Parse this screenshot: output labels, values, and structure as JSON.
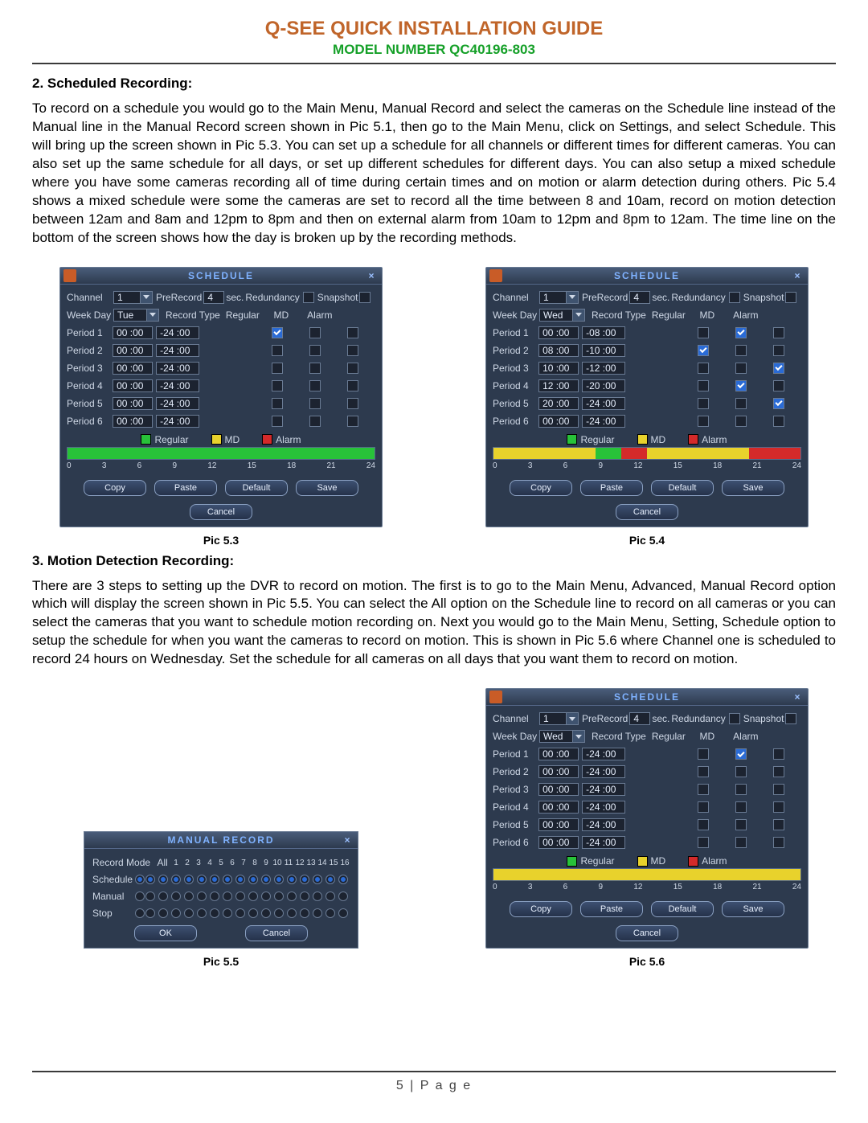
{
  "header": {
    "title": "Q-SEE QUICK INSTALLATION GUIDE",
    "model": "MODEL NUMBER QC40196-803"
  },
  "section2": {
    "heading": "2. Scheduled Recording:",
    "text": "To record on a schedule you would go to the Main Menu, Manual Record and select the cameras on the Schedule line instead of the Manual line in the Manual Record screen shown in Pic 5.1, then go to the Main Menu, click on Settings, and select Schedule. This will bring up the screen shown in Pic 5.3. You can set up a schedule for all channels or different times for different cameras. You can also set up the same schedule for all days, or set up different schedules for different days. You can also setup a mixed schedule where you have some cameras recording all of time during certain times and on motion or alarm detection during others. Pic 5.4 shows a mixed schedule were some the cameras are set to record all the time between 8 and 10am, record on motion detection between 12am and 8am and 12pm to 8pm and then on external alarm from 10am to 12pm and 8pm to 12am. The time line on the bottom of the screen shows how the day is broken up by the recording methods."
  },
  "section3": {
    "heading": "3. Motion Detection Recording:",
    "text": "There are 3 steps to setting up the DVR to record on motion. The first is to go to the Main Menu, Advanced, Manual Record option which will display the screen shown in Pic 5.5. You can select the All option on the Schedule line to record on all cameras or you can select the cameras that you want to schedule motion recording on. Next you would go to the Main Menu, Setting, Schedule option to setup the schedule for when you want the cameras to record on motion. This is shown in Pic 5.6 where Channel one is scheduled to record 24 hours on Wednesday. Set the schedule for all cameras on all days that you want them to record on motion."
  },
  "captions": {
    "p53": "Pic 5.3",
    "p54": "Pic 5.4",
    "p55": "Pic 5.5",
    "p56": "Pic 5.6"
  },
  "footer": "5 | P a g e",
  "schedule_common": {
    "title": "SCHEDULE",
    "labels": {
      "channel": "Channel",
      "prerecord": "PreRecord",
      "sec": "sec.",
      "redundancy": "Redundancy",
      "snapshot": "Snapshot",
      "weekday": "Week Day",
      "recordtype": "Record Type",
      "regular": "Regular",
      "md": "MD",
      "alarm": "Alarm"
    },
    "period_labels": [
      "Period 1",
      "Period 2",
      "Period 3",
      "Period 4",
      "Period 5",
      "Period 6"
    ],
    "prerecord_val": "4",
    "legend": {
      "regular": "Regular",
      "md": "MD",
      "alarm": "Alarm"
    },
    "legend_colors": {
      "regular": "#28c239",
      "md": "#e8d22c",
      "alarm": "#d42a2a"
    },
    "ticks": [
      "0",
      "3",
      "6",
      "9",
      "12",
      "15",
      "18",
      "21",
      "24"
    ],
    "buttons": [
      "Copy",
      "Paste",
      "Default",
      "Save",
      "Cancel"
    ]
  },
  "pic53": {
    "channel": "1",
    "weekday": "Tue",
    "periods": [
      {
        "t1": "00 :00",
        "t2": "-24 :00",
        "reg": true,
        "md": false,
        "alm": false
      },
      {
        "t1": "00 :00",
        "t2": "-24 :00",
        "reg": false,
        "md": false,
        "alm": false
      },
      {
        "t1": "00 :00",
        "t2": "-24 :00",
        "reg": false,
        "md": false,
        "alm": false
      },
      {
        "t1": "00 :00",
        "t2": "-24 :00",
        "reg": false,
        "md": false,
        "alm": false
      },
      {
        "t1": "00 :00",
        "t2": "-24 :00",
        "reg": false,
        "md": false,
        "alm": false
      },
      {
        "t1": "00 :00",
        "t2": "-24 :00",
        "reg": false,
        "md": false,
        "alm": false
      }
    ],
    "timeline": [
      {
        "from": 0,
        "to": 24,
        "color": "#28c239"
      }
    ]
  },
  "pic54": {
    "channel": "1",
    "weekday": "Wed",
    "periods": [
      {
        "t1": "00 :00",
        "t2": "-08 :00",
        "reg": false,
        "md": true,
        "alm": false
      },
      {
        "t1": "08 :00",
        "t2": "-10 :00",
        "reg": true,
        "md": false,
        "alm": false
      },
      {
        "t1": "10 :00",
        "t2": "-12 :00",
        "reg": false,
        "md": false,
        "alm": true
      },
      {
        "t1": "12 :00",
        "t2": "-20 :00",
        "reg": false,
        "md": true,
        "alm": false
      },
      {
        "t1": "20 :00",
        "t2": "-24 :00",
        "reg": false,
        "md": false,
        "alm": true
      },
      {
        "t1": "00 :00",
        "t2": "-24 :00",
        "reg": false,
        "md": false,
        "alm": false
      }
    ],
    "timeline": [
      {
        "from": 0,
        "to": 8,
        "color": "#e8d22c"
      },
      {
        "from": 8,
        "to": 10,
        "color": "#28c239"
      },
      {
        "from": 10,
        "to": 12,
        "color": "#d42a2a"
      },
      {
        "from": 12,
        "to": 20,
        "color": "#e8d22c"
      },
      {
        "from": 20,
        "to": 24,
        "color": "#d42a2a"
      }
    ]
  },
  "pic56": {
    "channel": "1",
    "weekday": "Wed",
    "periods": [
      {
        "t1": "00 :00",
        "t2": "-24 :00",
        "reg": false,
        "md": true,
        "alm": false
      },
      {
        "t1": "00 :00",
        "t2": "-24 :00",
        "reg": false,
        "md": false,
        "alm": false
      },
      {
        "t1": "00 :00",
        "t2": "-24 :00",
        "reg": false,
        "md": false,
        "alm": false
      },
      {
        "t1": "00 :00",
        "t2": "-24 :00",
        "reg": false,
        "md": false,
        "alm": false
      },
      {
        "t1": "00 :00",
        "t2": "-24 :00",
        "reg": false,
        "md": false,
        "alm": false
      },
      {
        "t1": "00 :00",
        "t2": "-24 :00",
        "reg": false,
        "md": false,
        "alm": false
      }
    ],
    "timeline": [
      {
        "from": 0,
        "to": 24,
        "color": "#e8d22c"
      }
    ]
  },
  "manual_record": {
    "title": "MANUAL RECORD",
    "rows_label": "Record Mode",
    "all_label": "All",
    "nums": [
      "1",
      "2",
      "3",
      "4",
      "5",
      "6",
      "7",
      "8",
      "9",
      "10",
      "11",
      "12",
      "13",
      "14",
      "15",
      "16"
    ],
    "lines": [
      {
        "label": "Schedule",
        "all": true,
        "on": true
      },
      {
        "label": "Manual",
        "all": false,
        "on": false
      },
      {
        "label": "Stop",
        "all": false,
        "on": false
      }
    ],
    "buttons": [
      "OK",
      "Cancel"
    ]
  }
}
